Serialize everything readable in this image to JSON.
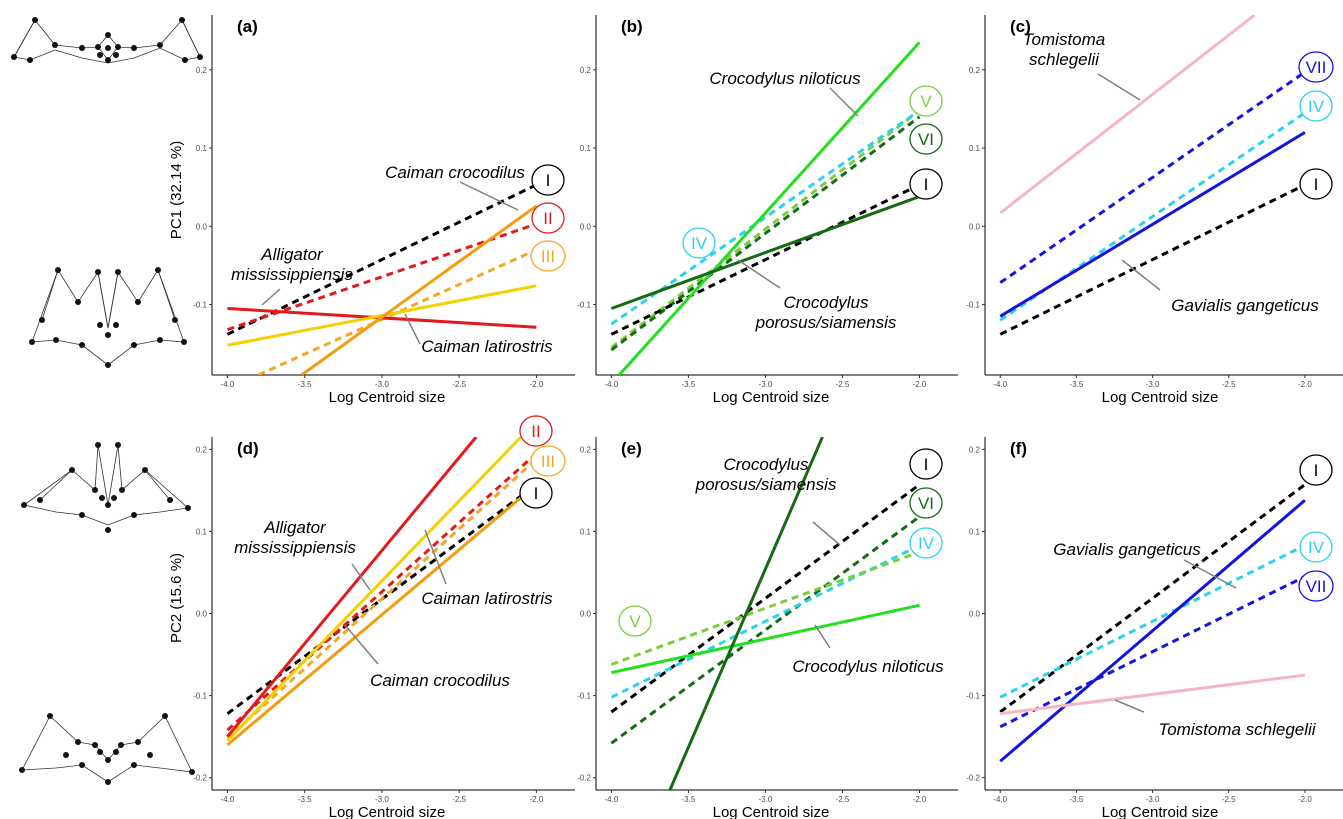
{
  "figure": {
    "pc1_label": "PC1 (32.14 %)",
    "pc2_label": "PC2 (15.6 %)",
    "x_label": "Log Centroid size"
  },
  "colors": {
    "I": "#000000",
    "II": "#e31a1c",
    "III": "#f5a623",
    "IV": "#29d3f0",
    "V": "#7ccd3c",
    "VI": "#146b14",
    "VII": "#1414e0",
    "Alligator mississippiensis": "#e31a1c",
    "Caiman crocodilus": "#f39c12",
    "Caiman latirostris": "#f5d000",
    "Crocodylus niloticus": "#22e01e",
    "Crocodylus porosus/siamensis": "#146b14",
    "Tomistoma schlegelii": "#f6b5c2",
    "Gavialis gangeticus": "#1414e0"
  },
  "chart_data": [
    {
      "type": "line",
      "panel": "(a)",
      "pc": "PC1",
      "xlabel": "Log Centroid size",
      "ylabel": "PC1 (32.14 %)",
      "xlim": [
        -4.1,
        -1.75
      ],
      "ylim": [
        -0.19,
        0.27
      ],
      "xticks": [
        "-4.0",
        "-3.5",
        "-3.0",
        "-2.5",
        "-2.0"
      ],
      "yticks": [
        "-0.1",
        "0.0",
        "0.1",
        "0.2"
      ],
      "series": [
        {
          "name": "I",
          "style": "dashed",
          "x": [
            -4.0,
            -2.0
          ],
          "y": [
            -0.138,
            0.053
          ]
        },
        {
          "name": "II",
          "style": "dashed",
          "x": [
            -4.0,
            -2.0
          ],
          "y": [
            -0.132,
            0.003
          ]
        },
        {
          "name": "III",
          "style": "dashed",
          "x": [
            -3.8,
            -2.0
          ],
          "y": [
            -0.19,
            -0.03
          ]
        },
        {
          "name": "Alligator mississippiensis",
          "style": "solid",
          "x": [
            -4.0,
            -2.0
          ],
          "y": [
            -0.105,
            -0.129
          ]
        },
        {
          "name": "Caiman latirostris",
          "style": "solid",
          "x": [
            -4.0,
            -2.0
          ],
          "y": [
            -0.152,
            -0.076
          ]
        },
        {
          "name": "Caiman crocodilus",
          "style": "solid",
          "x": [
            -3.52,
            -2.0
          ],
          "y": [
            -0.19,
            0.026
          ]
        }
      ],
      "species_labels": [
        "Caiman crocodilus",
        "Alligator mississippiensis",
        "Caiman latirostris"
      ],
      "group_labels": [
        "I",
        "II",
        "III"
      ]
    },
    {
      "type": "line",
      "panel": "(b)",
      "pc": "PC1",
      "xlabel": "Log Centroid size",
      "ylabel": "",
      "xlim": [
        -4.1,
        -1.75
      ],
      "ylim": [
        -0.19,
        0.27
      ],
      "xticks": [
        "-4.0",
        "-3.5",
        "-3.0",
        "-2.5",
        "-2.0"
      ],
      "yticks": [
        "-0.1",
        "0.0",
        "0.1",
        "0.2"
      ],
      "series": [
        {
          "name": "V",
          "style": "dashed",
          "x": [
            -4.0,
            -2.0
          ],
          "y": [
            -0.155,
            0.148
          ]
        },
        {
          "name": "VI",
          "style": "dashed",
          "x": [
            -4.0,
            -2.0
          ],
          "y": [
            -0.158,
            0.14
          ]
        },
        {
          "name": "IV",
          "style": "dashed",
          "x": [
            -4.0,
            -2.0
          ],
          "y": [
            -0.125,
            0.148
          ]
        },
        {
          "name": "I",
          "style": "dashed",
          "x": [
            -4.0,
            -2.0
          ],
          "y": [
            -0.138,
            0.053
          ]
        },
        {
          "name": "Crocodylus niloticus",
          "style": "solid",
          "x": [
            -3.95,
            -2.0
          ],
          "y": [
            -0.19,
            0.235
          ]
        },
        {
          "name": "Crocodylus porosus/siamensis",
          "style": "solid",
          "x": [
            -4.0,
            -2.0
          ],
          "y": [
            -0.105,
            0.038
          ]
        }
      ],
      "species_labels": [
        "Crocodylus niloticus",
        "Crocodylus porosus/siamensis"
      ],
      "group_labels": [
        "V",
        "VI",
        "I",
        "IV"
      ]
    },
    {
      "type": "line",
      "panel": "(c)",
      "pc": "PC1",
      "xlabel": "Log Centroid size",
      "ylabel": "",
      "xlim": [
        -4.1,
        -1.75
      ],
      "ylim": [
        -0.19,
        0.27
      ],
      "xticks": [
        "-4.0",
        "-3.5",
        "-3.0",
        "-2.5",
        "-2.0"
      ],
      "yticks": [
        "-0.1",
        "0.0",
        "0.1",
        "0.2"
      ],
      "series": [
        {
          "name": "VII",
          "style": "dashed",
          "x": [
            -4.0,
            -2.0
          ],
          "y": [
            -0.072,
            0.197
          ]
        },
        {
          "name": "IV",
          "style": "dashed",
          "x": [
            -4.0,
            -2.0
          ],
          "y": [
            -0.12,
            0.145
          ]
        },
        {
          "name": "I",
          "style": "dashed",
          "x": [
            -4.0,
            -2.0
          ],
          "y": [
            -0.138,
            0.053
          ]
        },
        {
          "name": "Tomistoma schlegelii",
          "style": "solid",
          "x": [
            -4.0,
            -2.33
          ],
          "y": [
            0.017,
            0.27
          ]
        },
        {
          "name": "Gavialis gangeticus",
          "style": "solid",
          "x": [
            -4.0,
            -2.0
          ],
          "y": [
            -0.115,
            0.12
          ]
        }
      ],
      "species_labels": [
        "Tomistoma schlegelii",
        "Gavialis gangeticus"
      ],
      "group_labels": [
        "VII",
        "IV",
        "I"
      ]
    },
    {
      "type": "line",
      "panel": "(d)",
      "pc": "PC2",
      "xlabel": "Log Centroid size",
      "ylabel": "PC2 (15.6 %)",
      "xlim": [
        -4.1,
        -1.75
      ],
      "ylim": [
        -0.215,
        0.215
      ],
      "xticks": [
        "-4.0",
        "-3.5",
        "-3.0",
        "-2.5",
        "-2.0"
      ],
      "yticks": [
        "-0.2",
        "-0.1",
        "0.0",
        "0.1",
        "0.2"
      ],
      "series": [
        {
          "name": "I",
          "style": "dashed",
          "x": [
            -4.0,
            -2.0
          ],
          "y": [
            -0.122,
            0.157
          ]
        },
        {
          "name": "II",
          "style": "dashed",
          "x": [
            -4.0,
            -2.0
          ],
          "y": [
            -0.142,
            0.195
          ]
        },
        {
          "name": "III",
          "style": "dashed",
          "x": [
            -4.0,
            -2.0
          ],
          "y": [
            -0.152,
            0.188
          ]
        },
        {
          "name": "Alligator mississippiensis",
          "style": "solid",
          "x": [
            -4.0,
            -2.39
          ],
          "y": [
            -0.15,
            0.215
          ]
        },
        {
          "name": "Caiman latirostris",
          "style": "solid",
          "x": [
            -4.0,
            -2.1
          ],
          "y": [
            -0.155,
            0.215
          ]
        },
        {
          "name": "Caiman crocodilus",
          "style": "solid",
          "x": [
            -4.0,
            -2.0
          ],
          "y": [
            -0.16,
            0.157
          ]
        }
      ],
      "species_labels": [
        "Alligator mississippiensis",
        "Caiman latirostris",
        "Caiman crocodilus"
      ],
      "group_labels": [
        "II",
        "III",
        "I"
      ]
    },
    {
      "type": "line",
      "panel": "(e)",
      "pc": "PC2",
      "xlabel": "Log Centroid size",
      "ylabel": "",
      "xlim": [
        -4.1,
        -1.75
      ],
      "ylim": [
        -0.215,
        0.215
      ],
      "xticks": [
        "-4.0",
        "-3.5",
        "-3.0",
        "-2.5",
        "-2.0"
      ],
      "yticks": [
        "-0.2",
        "-0.1",
        "0.0",
        "0.1",
        "0.2"
      ],
      "series": [
        {
          "name": "I",
          "style": "dashed",
          "x": [
            -4.0,
            -2.0
          ],
          "y": [
            -0.12,
            0.157
          ]
        },
        {
          "name": "VI",
          "style": "dashed",
          "x": [
            -4.0,
            -2.0
          ],
          "y": [
            -0.158,
            0.118
          ]
        },
        {
          "name": "IV",
          "style": "dashed",
          "x": [
            -4.0,
            -2.0
          ],
          "y": [
            -0.102,
            0.083
          ]
        },
        {
          "name": "V",
          "style": "dashed",
          "x": [
            -4.0,
            -2.0
          ],
          "y": [
            -0.062,
            0.075
          ]
        },
        {
          "name": "Crocodylus niloticus",
          "style": "solid",
          "x": [
            -4.0,
            -2.0
          ],
          "y": [
            -0.072,
            0.01
          ]
        },
        {
          "name": "Crocodylus porosus/siamensis",
          "style": "solid",
          "x": [
            -3.62,
            -2.63
          ],
          "y": [
            -0.215,
            0.215
          ]
        }
      ],
      "species_labels": [
        "Crocodylus porosus/siamensis",
        "Crocodylus niloticus"
      ],
      "group_labels": [
        "I",
        "VI",
        "IV",
        "V"
      ]
    },
    {
      "type": "line",
      "panel": "(f)",
      "pc": "PC2",
      "xlabel": "Log Centroid size",
      "ylabel": "",
      "xlim": [
        -4.1,
        -1.75
      ],
      "ylim": [
        -0.215,
        0.215
      ],
      "xticks": [
        "-4.0",
        "-3.5",
        "-3.0",
        "-2.5",
        "-2.0"
      ],
      "yticks": [
        "-0.2",
        "-0.1",
        "0.0",
        "0.1",
        "0.2"
      ],
      "series": [
        {
          "name": "I",
          "style": "dashed",
          "x": [
            -4.0,
            -2.0
          ],
          "y": [
            -0.12,
            0.157
          ]
        },
        {
          "name": "IV",
          "style": "dashed",
          "x": [
            -4.0,
            -2.0
          ],
          "y": [
            -0.102,
            0.083
          ]
        },
        {
          "name": "VII",
          "style": "dashed",
          "x": [
            -4.0,
            -2.0
          ],
          "y": [
            -0.138,
            0.045
          ]
        },
        {
          "name": "Gavialis gangeticus",
          "style": "solid",
          "x": [
            -4.0,
            -2.0
          ],
          "y": [
            -0.18,
            0.138
          ]
        },
        {
          "name": "Tomistoma schlegelii",
          "style": "solid",
          "x": [
            -4.0,
            -2.0
          ],
          "y": [
            -0.122,
            -0.075
          ]
        }
      ],
      "species_labels": [
        "Gavialis gangeticus",
        "Tomistoma schlegelii"
      ],
      "group_labels": [
        "I",
        "IV",
        "VII"
      ]
    }
  ]
}
